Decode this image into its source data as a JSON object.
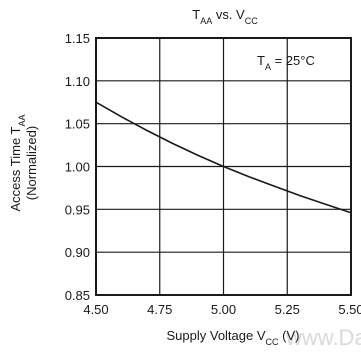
{
  "chart_data": {
    "type": "line",
    "title": {
      "main": "T",
      "sub1": "AA",
      "mid": " vs. V",
      "sub2": "CC"
    },
    "annotation": {
      "main": "T",
      "sub": "A",
      "rest": " = 25°C"
    },
    "xlabel": {
      "main": "Supply Voltage V",
      "sub": "CC",
      "rest": " (V)"
    },
    "ylabel": {
      "line1_main": "Access Time T",
      "line1_sub": "AA",
      "line2": "(Normalized)"
    },
    "xlim": [
      4.5,
      5.5
    ],
    "ylim": [
      0.85,
      1.15
    ],
    "x_ticks": [
      4.5,
      4.75,
      5.0,
      5.25,
      5.5
    ],
    "x_tick_labels": [
      "4.50",
      "4.75",
      "5.00",
      "5.25",
      "5.50"
    ],
    "y_ticks": [
      0.85,
      0.9,
      0.95,
      1.0,
      1.05,
      1.1,
      1.15
    ],
    "y_tick_labels": [
      "0.85",
      "0.90",
      "0.95",
      "1.00",
      "1.05",
      "1.10",
      "1.15"
    ],
    "grid": true,
    "series": [
      {
        "x": [
          4.5,
          4.6,
          4.7,
          4.8,
          4.9,
          5.0,
          5.1,
          5.2,
          5.3,
          5.4,
          5.5
        ],
        "y": [
          1.075,
          1.058,
          1.042,
          1.027,
          1.013,
          1.0,
          0.988,
          0.977,
          0.966,
          0.956,
          0.946
        ]
      }
    ],
    "colors": {
      "line": "#1a1a1a",
      "grid": "#1a1a1a"
    }
  },
  "watermark": "www.Da"
}
